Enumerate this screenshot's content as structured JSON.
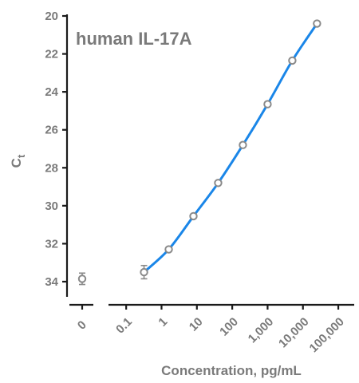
{
  "chart_data": {
    "type": "scatter",
    "title": "human IL-17A",
    "xlabel": "Concentration, pg/mL",
    "ylabel_main": "C",
    "ylabel_sub": "t",
    "x_scale": "log",
    "y_axis_inverted": true,
    "ylim": [
      20,
      34.8
    ],
    "y_ticks": [
      20,
      22,
      24,
      26,
      28,
      30,
      32,
      34
    ],
    "x_ticks": [
      {
        "value": 0.1,
        "label": "0.1"
      },
      {
        "value": 1,
        "label": "1"
      },
      {
        "value": 10,
        "label": "10"
      },
      {
        "value": 100,
        "label": "100"
      },
      {
        "value": 1000,
        "label": "1,000"
      },
      {
        "value": 10000,
        "label": "10,000"
      },
      {
        "value": 100000,
        "label": "100,000"
      }
    ],
    "zero_segment": {
      "label": "0",
      "value": 0,
      "y": 33.85,
      "err": 0.3
    },
    "points": [
      {
        "x": 0.32,
        "y": 33.5,
        "err": 0.35
      },
      {
        "x": 1.6,
        "y": 32.3,
        "err": 0.1
      },
      {
        "x": 8,
        "y": 30.55,
        "err": 0.1
      },
      {
        "x": 40,
        "y": 28.8,
        "err": 0.1
      },
      {
        "x": 200,
        "y": 26.8,
        "err": 0.1
      },
      {
        "x": 1000,
        "y": 24.65,
        "err": 0.1
      },
      {
        "x": 5000,
        "y": 22.35,
        "err": 0.1
      },
      {
        "x": 25000,
        "y": 20.4,
        "err": 0.1
      }
    ],
    "fit_curve": {
      "type": "smooth",
      "color": "#1a86e8"
    },
    "marker_color": "#8a8a8a",
    "grid": false
  }
}
